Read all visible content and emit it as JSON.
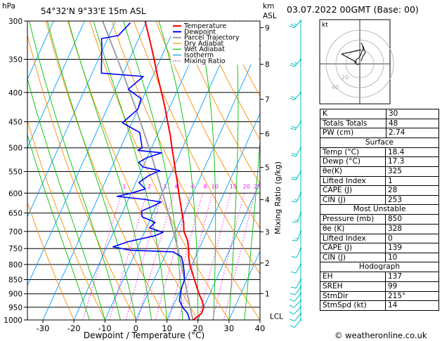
{
  "header": {
    "pressure_unit": "hPa",
    "location": "54°32'N  9°33'E  15m  ASL",
    "alt_unit_km": "km",
    "alt_unit_asl": "ASL",
    "datetime": "03.07.2022  00GMT  (Base: 00)",
    "credit": "© weatheronline.co.uk"
  },
  "colors": {
    "temperature": "#ff0000",
    "dewpoint": "#0000ff",
    "parcel": "#a0a0a0",
    "dry_adiabat": "#ff8c00",
    "wet_adiabat": "#00c000",
    "isotherm": "#00a0ff",
    "mixing_ratio": "#ff00ff",
    "wind_barbs": "#00c0c0"
  },
  "legend": [
    "Temperature",
    "Dewpoint",
    "Parcel Trajectory",
    "Dry Adiabat",
    "Wet Adiabat",
    "Isotherm",
    "Mixing Ratio"
  ],
  "chart_data": {
    "type": "line",
    "xlabel": "Dewpoint / Temperature (°C)",
    "ylabel_right": "Mixing Ratio (g/kg)",
    "xlim": [
      -35,
      40
    ],
    "x_ticks": [
      -30,
      -20,
      -10,
      0,
      10,
      20,
      30,
      40
    ],
    "ylim": [
      1000,
      300
    ],
    "pressure_levels": [
      300,
      350,
      400,
      450,
      500,
      550,
      600,
      650,
      700,
      750,
      800,
      850,
      900,
      950,
      1000
    ],
    "km_ticks": [
      {
        "label": "9",
        "p": 308
      },
      {
        "label": "8",
        "p": 357
      },
      {
        "label": "7",
        "p": 411
      },
      {
        "label": "6",
        "p": 472
      },
      {
        "label": "5",
        "p": 541
      },
      {
        "label": "4",
        "p": 616
      },
      {
        "label": "3",
        "p": 701
      },
      {
        "label": "2",
        "p": 795
      },
      {
        "label": "1",
        "p": 899
      }
    ],
    "lcl_label": "LCL",
    "lcl_p": 990,
    "mixing_ratio_labels": [
      "1",
      "2",
      "3",
      "4",
      "6",
      "8",
      "10",
      "15",
      "20",
      "25"
    ],
    "mixing_ratio_label_p": 590,
    "series": [
      {
        "name": "Temperature",
        "points": [
          [
            1000,
            18.4
          ],
          [
            975,
            20.2
          ],
          [
            950,
            20.0
          ],
          [
            925,
            18.5
          ],
          [
            900,
            16.5
          ],
          [
            875,
            14.8
          ],
          [
            850,
            13.0
          ],
          [
            825,
            11.2
          ],
          [
            800,
            9.3
          ],
          [
            775,
            7.8
          ],
          [
            750,
            6.6
          ],
          [
            725,
            5.0
          ],
          [
            700,
            2.6
          ],
          [
            675,
            1.2
          ],
          [
            650,
            -0.7
          ],
          [
            625,
            -2.6
          ],
          [
            600,
            -4.6
          ],
          [
            575,
            -6.6
          ],
          [
            550,
            -8.8
          ],
          [
            525,
            -11.0
          ],
          [
            500,
            -13.4
          ],
          [
            475,
            -15.8
          ],
          [
            450,
            -18.6
          ],
          [
            425,
            -21.5
          ],
          [
            400,
            -24.8
          ],
          [
            375,
            -28.4
          ],
          [
            350,
            -32.0
          ],
          [
            325,
            -36.0
          ],
          [
            300,
            -40.5
          ]
        ]
      },
      {
        "name": "Dewpoint",
        "points": [
          [
            1000,
            17.3
          ],
          [
            975,
            15.8
          ],
          [
            950,
            13.2
          ],
          [
            925,
            11.2
          ],
          [
            900,
            10.5
          ],
          [
            875,
            10.0
          ],
          [
            850,
            9.8
          ],
          [
            825,
            8.6
          ],
          [
            800,
            7.2
          ],
          [
            775,
            5.5
          ],
          [
            760,
            2.0
          ],
          [
            755,
            -12.0
          ],
          [
            745,
            -18.0
          ],
          [
            730,
            -14.0
          ],
          [
            712,
            -6.0
          ],
          [
            703,
            -4.0
          ],
          [
            690,
            -9.0
          ],
          [
            675,
            -8.0
          ],
          [
            660,
            -13.0
          ],
          [
            645,
            -14.0
          ],
          [
            632,
            -11.0
          ],
          [
            622,
            -9.0
          ],
          [
            615,
            -15.0
          ],
          [
            608,
            -24.0
          ],
          [
            600,
            -20.0
          ],
          [
            590,
            -16.0
          ],
          [
            575,
            -19.0
          ],
          [
            560,
            -17.0
          ],
          [
            548,
            -14.0
          ],
          [
            540,
            -20.0
          ],
          [
            530,
            -22.0
          ],
          [
            520,
            -20.0
          ],
          [
            510,
            -16.0
          ],
          [
            505,
            -24.0
          ],
          [
            500,
            -23.0
          ],
          [
            470,
            -26.0
          ],
          [
            452,
            -33.0
          ],
          [
            428,
            -30.0
          ],
          [
            410,
            -30.5
          ],
          [
            395,
            -36.0
          ],
          [
            375,
            -33.0
          ],
          [
            370,
            -47.0
          ],
          [
            330,
            -51.0
          ],
          [
            322,
            -52.0
          ],
          [
            318,
            -47.0
          ],
          [
            310,
            -46.0
          ],
          [
            302,
            -45.0
          ]
        ]
      },
      {
        "name": "Parcel Trajectory",
        "points": [
          [
            1000,
            18.4
          ],
          [
            975,
            17.0
          ],
          [
            950,
            15.6
          ],
          [
            925,
            14.2
          ],
          [
            900,
            12.8
          ],
          [
            875,
            11.3
          ],
          [
            850,
            9.8
          ],
          [
            825,
            8.2
          ],
          [
            800,
            6.6
          ],
          [
            775,
            4.9
          ],
          [
            750,
            3.1
          ],
          [
            725,
            1.2
          ],
          [
            700,
            -0.8
          ],
          [
            675,
            -2.9
          ],
          [
            650,
            -5.1
          ],
          [
            625,
            -7.4
          ],
          [
            600,
            -9.8
          ],
          [
            575,
            -12.3
          ],
          [
            550,
            -15.0
          ],
          [
            525,
            -17.8
          ],
          [
            500,
            -20.8
          ],
          [
            475,
            -24.0
          ],
          [
            450,
            -27.4
          ],
          [
            425,
            -31.0
          ],
          [
            400,
            -35.0
          ],
          [
            375,
            -39.2
          ],
          [
            350,
            -43.8
          ],
          [
            325,
            -48.8
          ],
          [
            300,
            -54.2
          ]
        ]
      }
    ],
    "dry_adiabat_thetas": [
      -20,
      -10,
      0,
      10,
      20,
      30,
      40,
      50,
      60,
      70,
      80,
      90,
      100,
      110,
      120,
      130,
      140,
      150,
      160
    ],
    "wet_adiabat_starts": [
      -15,
      -10,
      -5,
      0,
      5,
      10,
      15,
      20,
      25,
      30,
      35
    ],
    "wind_profile": [
      {
        "p": 1000,
        "dir": 220,
        "spd": 10
      },
      {
        "p": 975,
        "dir": 220,
        "spd": 10
      },
      {
        "p": 950,
        "dir": 225,
        "spd": 10
      },
      {
        "p": 925,
        "dir": 225,
        "spd": 10
      },
      {
        "p": 900,
        "dir": 220,
        "spd": 10
      },
      {
        "p": 875,
        "dir": 215,
        "spd": 10
      },
      {
        "p": 850,
        "dir": 210,
        "spd": 10
      },
      {
        "p": 800,
        "dir": 210,
        "spd": 10
      },
      {
        "p": 750,
        "dir": 205,
        "spd": 10
      },
      {
        "p": 700,
        "dir": 200,
        "spd": 15
      },
      {
        "p": 650,
        "dir": 200,
        "spd": 15
      },
      {
        "p": 600,
        "dir": 205,
        "spd": 15
      },
      {
        "p": 550,
        "dir": 210,
        "spd": 20
      },
      {
        "p": 500,
        "dir": 210,
        "spd": 20
      },
      {
        "p": 450,
        "dir": 215,
        "spd": 20
      },
      {
        "p": 400,
        "dir": 220,
        "spd": 20
      },
      {
        "p": 350,
        "dir": 220,
        "spd": 25
      },
      {
        "p": 300,
        "dir": 225,
        "spd": 25
      }
    ]
  },
  "hodograph": {
    "label": "kt",
    "ring_labels": [
      "20",
      "40"
    ],
    "points": [
      [
        0,
        0
      ],
      [
        -4,
        -1
      ],
      [
        -7,
        2
      ],
      [
        -5,
        6
      ],
      [
        -2,
        8
      ],
      [
        1,
        12
      ],
      [
        3,
        18
      ],
      [
        5,
        20
      ],
      [
        4,
        26
      ],
      [
        2,
        30
      ],
      [
        5,
        24
      ],
      [
        8,
        16
      ],
      [
        4,
        10
      ],
      [
        2,
        4
      ]
    ]
  },
  "indices": [
    {
      "label": "K",
      "value": "30"
    },
    {
      "label": "Totals Totals",
      "value": "48"
    },
    {
      "label": "PW (cm)",
      "value": "2.74"
    }
  ],
  "surface": {
    "title": "Surface",
    "rows": [
      {
        "label": "Temp (°C)",
        "value": "18.4"
      },
      {
        "label": "Dewp (°C)",
        "value": "17.3"
      },
      {
        "label": "θe(K)",
        "value": "325"
      },
      {
        "label": "Lifted Index",
        "value": "1"
      },
      {
        "label": "CAPE (J)",
        "value": "28"
      },
      {
        "label": "CIN (J)",
        "value": "253"
      }
    ]
  },
  "most_unstable": {
    "title": "Most Unstable",
    "rows": [
      {
        "label": "Pressure (mb)",
        "value": "850"
      },
      {
        "label": "θe (K)",
        "value": "328"
      },
      {
        "label": "Lifted Index",
        "value": "0"
      },
      {
        "label": "CAPE (J)",
        "value": "139"
      },
      {
        "label": "CIN (J)",
        "value": "10"
      }
    ]
  },
  "hodograph_table": {
    "title": "Hodograph",
    "rows": [
      {
        "label": "EH",
        "value": "137"
      },
      {
        "label": "SREH",
        "value": "99"
      },
      {
        "label": "StmDir",
        "value": "215°"
      },
      {
        "label": "StmSpd (kt)",
        "value": "14"
      }
    ]
  }
}
